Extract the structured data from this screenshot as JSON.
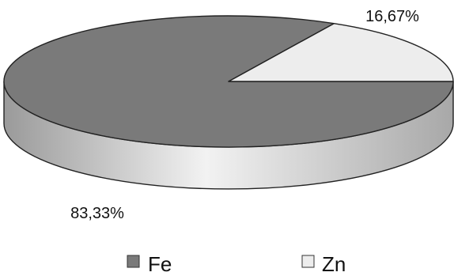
{
  "chart_data": {
    "type": "pie",
    "style": "3d",
    "categories": [
      "Fe",
      "Zn"
    ],
    "values": [
      83.33,
      16.67
    ],
    "labels": [
      "83,33%",
      "16,67%"
    ],
    "colors": {
      "Fe": "#7a7a7a",
      "Zn": "#ededed"
    },
    "legend": {
      "position": "bottom",
      "entries": [
        "Fe",
        "Zn"
      ]
    }
  }
}
